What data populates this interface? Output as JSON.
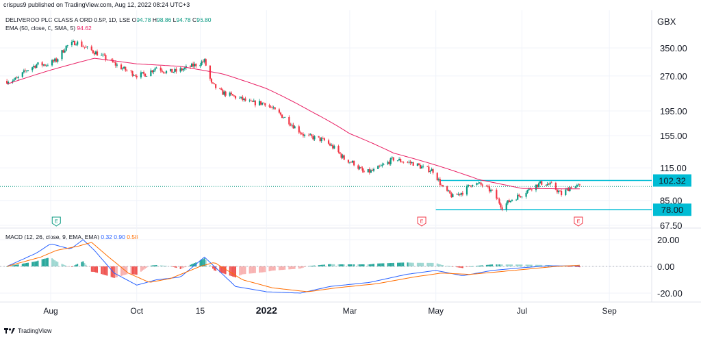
{
  "header": {
    "published": "crispus9 published on TradingView.com, Aug 12, 2022 08:24 UTC+3",
    "currency": "GBX"
  },
  "legend": {
    "symbol": "DELIVEROO PLC CLASS A ORD 0.5P, 1D, LSE",
    "o_label": "O",
    "o": "94.78",
    "h_label": "H",
    "h": "98.86",
    "l_label": "L",
    "l": "94.78",
    "c_label": "C",
    "c": "96.80",
    "ema_label": "EMA (50, close, 0, SMA, 5)",
    "ema": "94.62"
  },
  "macd_legend": {
    "label": "MACD (12, 26, close, 9, EMA, EMA)",
    "macd": "0.32",
    "signal": "0.90",
    "hist": "0.58"
  },
  "footer": {
    "brand": "TradingView"
  },
  "colors": {
    "up": "#089981",
    "down": "#f23645",
    "ema": "#e91e63",
    "macd": "#2962ff",
    "signal": "#ff6d00",
    "hist_up": "#26a69a",
    "hist_down": "#ef5350",
    "level": "#00bcd4",
    "grid": "#f0f3fa"
  },
  "chart_data": [
    {
      "type": "candlestick",
      "title": "DELIVEROO PLC CLASS A ORD 0.5P, 1D, LSE",
      "scale": "log",
      "ylim": [
        65,
        400
      ],
      "y_ticks": [
        "350.00",
        "270.00",
        "195.00",
        "155.00",
        "115.00",
        "85.00",
        "67.50"
      ],
      "x_ticks": [
        "Aug",
        "Oct",
        "15",
        "2022",
        "Mar",
        "May",
        "Jul",
        "Sep"
      ],
      "price_anchors": [
        {
          "date": "2021-07-01",
          "close": 258
        },
        {
          "date": "2021-07-08",
          "close": 262
        },
        {
          "date": "2021-07-15",
          "close": 285
        },
        {
          "date": "2021-07-22",
          "close": 300
        },
        {
          "date": "2021-07-29",
          "close": 300
        },
        {
          "date": "2021-08-05",
          "close": 312
        },
        {
          "date": "2021-08-12",
          "close": 355
        },
        {
          "date": "2021-08-19",
          "close": 370
        },
        {
          "date": "2021-08-26",
          "close": 350
        },
        {
          "date": "2021-09-02",
          "close": 335
        },
        {
          "date": "2021-09-09",
          "close": 318
        },
        {
          "date": "2021-09-16",
          "close": 300
        },
        {
          "date": "2021-09-23",
          "close": 285
        },
        {
          "date": "2021-10-01",
          "close": 272
        },
        {
          "date": "2021-10-08",
          "close": 275
        },
        {
          "date": "2021-10-15",
          "close": 293
        },
        {
          "date": "2021-10-22",
          "close": 280
        },
        {
          "date": "2021-10-29",
          "close": 282
        },
        {
          "date": "2021-11-05",
          "close": 290
        },
        {
          "date": "2021-11-12",
          "close": 300
        },
        {
          "date": "2021-11-18",
          "close": 310
        },
        {
          "date": "2021-11-23",
          "close": 250
        },
        {
          "date": "2021-11-30",
          "close": 232
        },
        {
          "date": "2021-12-07",
          "close": 225
        },
        {
          "date": "2021-12-14",
          "close": 218
        },
        {
          "date": "2021-12-21",
          "close": 210
        },
        {
          "date": "2021-12-31",
          "close": 210
        },
        {
          "date": "2022-01-07",
          "close": 195
        },
        {
          "date": "2022-01-14",
          "close": 183
        },
        {
          "date": "2022-01-21",
          "close": 168
        },
        {
          "date": "2022-01-28",
          "close": 155
        },
        {
          "date": "2022-02-04",
          "close": 152
        },
        {
          "date": "2022-02-11",
          "close": 148
        },
        {
          "date": "2022-02-18",
          "close": 138
        },
        {
          "date": "2022-02-25",
          "close": 125
        },
        {
          "date": "2022-03-04",
          "close": 120
        },
        {
          "date": "2022-03-11",
          "close": 110
        },
        {
          "date": "2022-03-18",
          "close": 112
        },
        {
          "date": "2022-03-25",
          "close": 118
        },
        {
          "date": "2022-04-01",
          "close": 125
        },
        {
          "date": "2022-04-08",
          "close": 122
        },
        {
          "date": "2022-04-15",
          "close": 120
        },
        {
          "date": "2022-04-22",
          "close": 115
        },
        {
          "date": "2022-04-29",
          "close": 112
        },
        {
          "date": "2022-05-06",
          "close": 95
        },
        {
          "date": "2022-05-13",
          "close": 88
        },
        {
          "date": "2022-05-20",
          "close": 92
        },
        {
          "date": "2022-05-27",
          "close": 100
        },
        {
          "date": "2022-06-03",
          "close": 98
        },
        {
          "date": "2022-06-10",
          "close": 92
        },
        {
          "date": "2022-06-17",
          "close": 80
        },
        {
          "date": "2022-06-24",
          "close": 86
        },
        {
          "date": "2022-07-01",
          "close": 90
        },
        {
          "date": "2022-07-08",
          "close": 96
        },
        {
          "date": "2022-07-15",
          "close": 100
        },
        {
          "date": "2022-07-22",
          "close": 98
        },
        {
          "date": "2022-07-29",
          "close": 90
        },
        {
          "date": "2022-08-05",
          "close": 97
        },
        {
          "date": "2022-08-11",
          "close": 96.8
        }
      ],
      "ema_anchors": [
        {
          "date": "2021-07-01",
          "value": 250
        },
        {
          "date": "2021-08-01",
          "value": 285
        },
        {
          "date": "2021-09-01",
          "value": 318
        },
        {
          "date": "2021-10-01",
          "value": 302
        },
        {
          "date": "2021-11-01",
          "value": 295
        },
        {
          "date": "2021-12-01",
          "value": 275
        },
        {
          "date": "2022-01-01",
          "value": 240
        },
        {
          "date": "2022-02-01",
          "value": 195
        },
        {
          "date": "2022-03-01",
          "value": 158
        },
        {
          "date": "2022-04-01",
          "value": 132
        },
        {
          "date": "2022-05-01",
          "value": 118
        },
        {
          "date": "2022-06-01",
          "value": 103
        },
        {
          "date": "2022-07-01",
          "value": 95
        },
        {
          "date": "2022-08-11",
          "value": 94.62
        }
      ],
      "levels": [
        {
          "label": "102.32",
          "value": 102.32,
          "from": "2022-05-04",
          "to": "2022-09-30"
        },
        {
          "label": "78.00",
          "value": 78.0,
          "from": "2022-05-01",
          "to": "2022-09-30"
        }
      ],
      "last_price_line": 96.8,
      "event_markers": [
        {
          "date": "2021-08-05",
          "label": "E"
        },
        {
          "date": "2022-04-21",
          "label": "E"
        },
        {
          "date": "2022-08-10",
          "label": "E"
        }
      ]
    },
    {
      "type": "line",
      "title": "MACD (12, 26, close, 9, EMA, EMA)",
      "ylim": [
        -25,
        25
      ],
      "y_ticks": [
        "20.00",
        "0.00",
        "-20.00"
      ],
      "series": [
        {
          "name": "MACD",
          "points": [
            {
              "date": "2021-07-01",
              "value": 0
            },
            {
              "date": "2021-07-22",
              "value": 10
            },
            {
              "date": "2021-08-01",
              "value": 17
            },
            {
              "date": "2021-08-15",
              "value": 13
            },
            {
              "date": "2021-08-24",
              "value": 20
            },
            {
              "date": "2021-09-01",
              "value": 12
            },
            {
              "date": "2021-09-15",
              "value": -5
            },
            {
              "date": "2021-10-01",
              "value": -14
            },
            {
              "date": "2021-10-15",
              "value": -10
            },
            {
              "date": "2021-11-01",
              "value": -8
            },
            {
              "date": "2021-11-18",
              "value": 7
            },
            {
              "date": "2021-11-25",
              "value": 0
            },
            {
              "date": "2021-12-10",
              "value": -15
            },
            {
              "date": "2022-01-01",
              "value": -19
            },
            {
              "date": "2022-01-25",
              "value": -20
            },
            {
              "date": "2022-02-15",
              "value": -15
            },
            {
              "date": "2022-03-15",
              "value": -12
            },
            {
              "date": "2022-04-10",
              "value": -6
            },
            {
              "date": "2022-05-01",
              "value": -3
            },
            {
              "date": "2022-05-20",
              "value": -7
            },
            {
              "date": "2022-06-10",
              "value": -3
            },
            {
              "date": "2022-07-01",
              "value": -1
            },
            {
              "date": "2022-07-20",
              "value": 0.5
            },
            {
              "date": "2022-08-11",
              "value": 0.32
            }
          ]
        },
        {
          "name": "Signal",
          "points": [
            {
              "date": "2021-07-01",
              "value": 0
            },
            {
              "date": "2021-07-25",
              "value": 7
            },
            {
              "date": "2021-08-05",
              "value": 12
            },
            {
              "date": "2021-08-20",
              "value": 15
            },
            {
              "date": "2021-08-30",
              "value": 18
            },
            {
              "date": "2021-09-10",
              "value": 8
            },
            {
              "date": "2021-09-25",
              "value": -5
            },
            {
              "date": "2021-10-10",
              "value": -12
            },
            {
              "date": "2021-10-25",
              "value": -9
            },
            {
              "date": "2021-11-15",
              "value": 0
            },
            {
              "date": "2021-11-25",
              "value": 3
            },
            {
              "date": "2021-12-15",
              "value": -10
            },
            {
              "date": "2022-01-05",
              "value": -16
            },
            {
              "date": "2022-01-30",
              "value": -19
            },
            {
              "date": "2022-02-20",
              "value": -16
            },
            {
              "date": "2022-03-20",
              "value": -13
            },
            {
              "date": "2022-04-15",
              "value": -8
            },
            {
              "date": "2022-05-05",
              "value": -5
            },
            {
              "date": "2022-05-25",
              "value": -6
            },
            {
              "date": "2022-06-15",
              "value": -4
            },
            {
              "date": "2022-07-05",
              "value": -2
            },
            {
              "date": "2022-07-25",
              "value": 0
            },
            {
              "date": "2022-08-11",
              "value": 0.9
            }
          ]
        }
      ]
    }
  ]
}
